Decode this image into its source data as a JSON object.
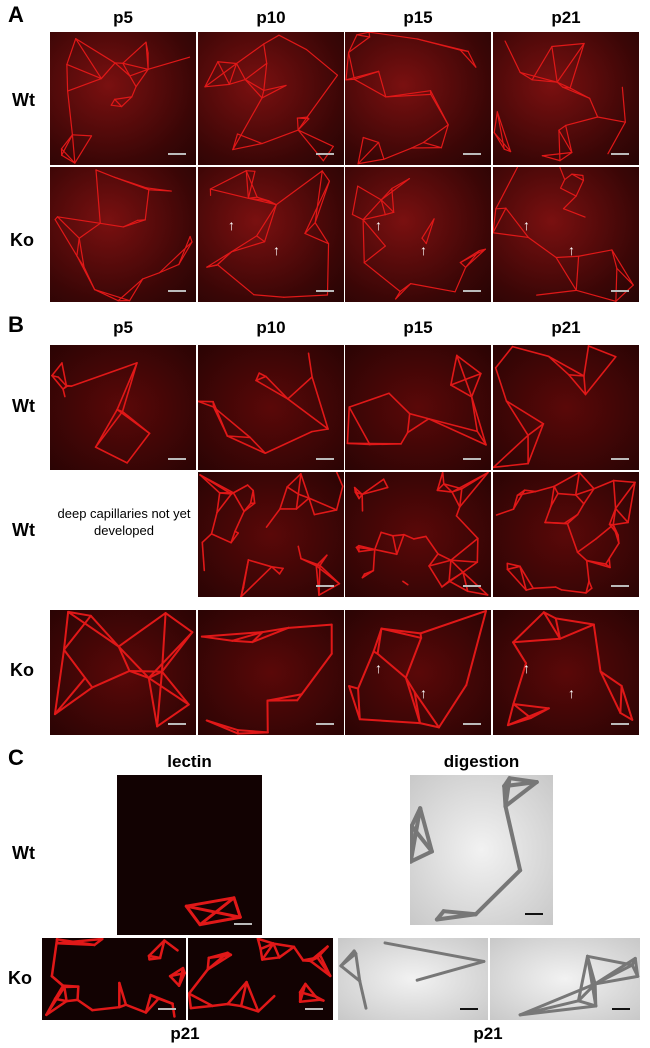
{
  "panels": {
    "A": {
      "label": "A",
      "columns": [
        "p5",
        "p10",
        "p15",
        "p21"
      ],
      "rows": [
        "Wt",
        "Ko"
      ]
    },
    "B": {
      "label": "B",
      "columns": [
        "p5",
        "p10",
        "p15",
        "p21"
      ],
      "rows": [
        "Wt",
        "Wt",
        "Ko"
      ],
      "note": "deep capillaries not yet developed"
    },
    "C": {
      "label": "C",
      "columns": [
        "lectin",
        "digestion"
      ],
      "rows": [
        "Wt",
        "Ko"
      ],
      "age_left": "p21",
      "age_right": "p21"
    }
  },
  "colors": {
    "stain_red": "#e01818",
    "background_dark": "#2a0404",
    "digestion_gray": "#d8d8d8"
  }
}
